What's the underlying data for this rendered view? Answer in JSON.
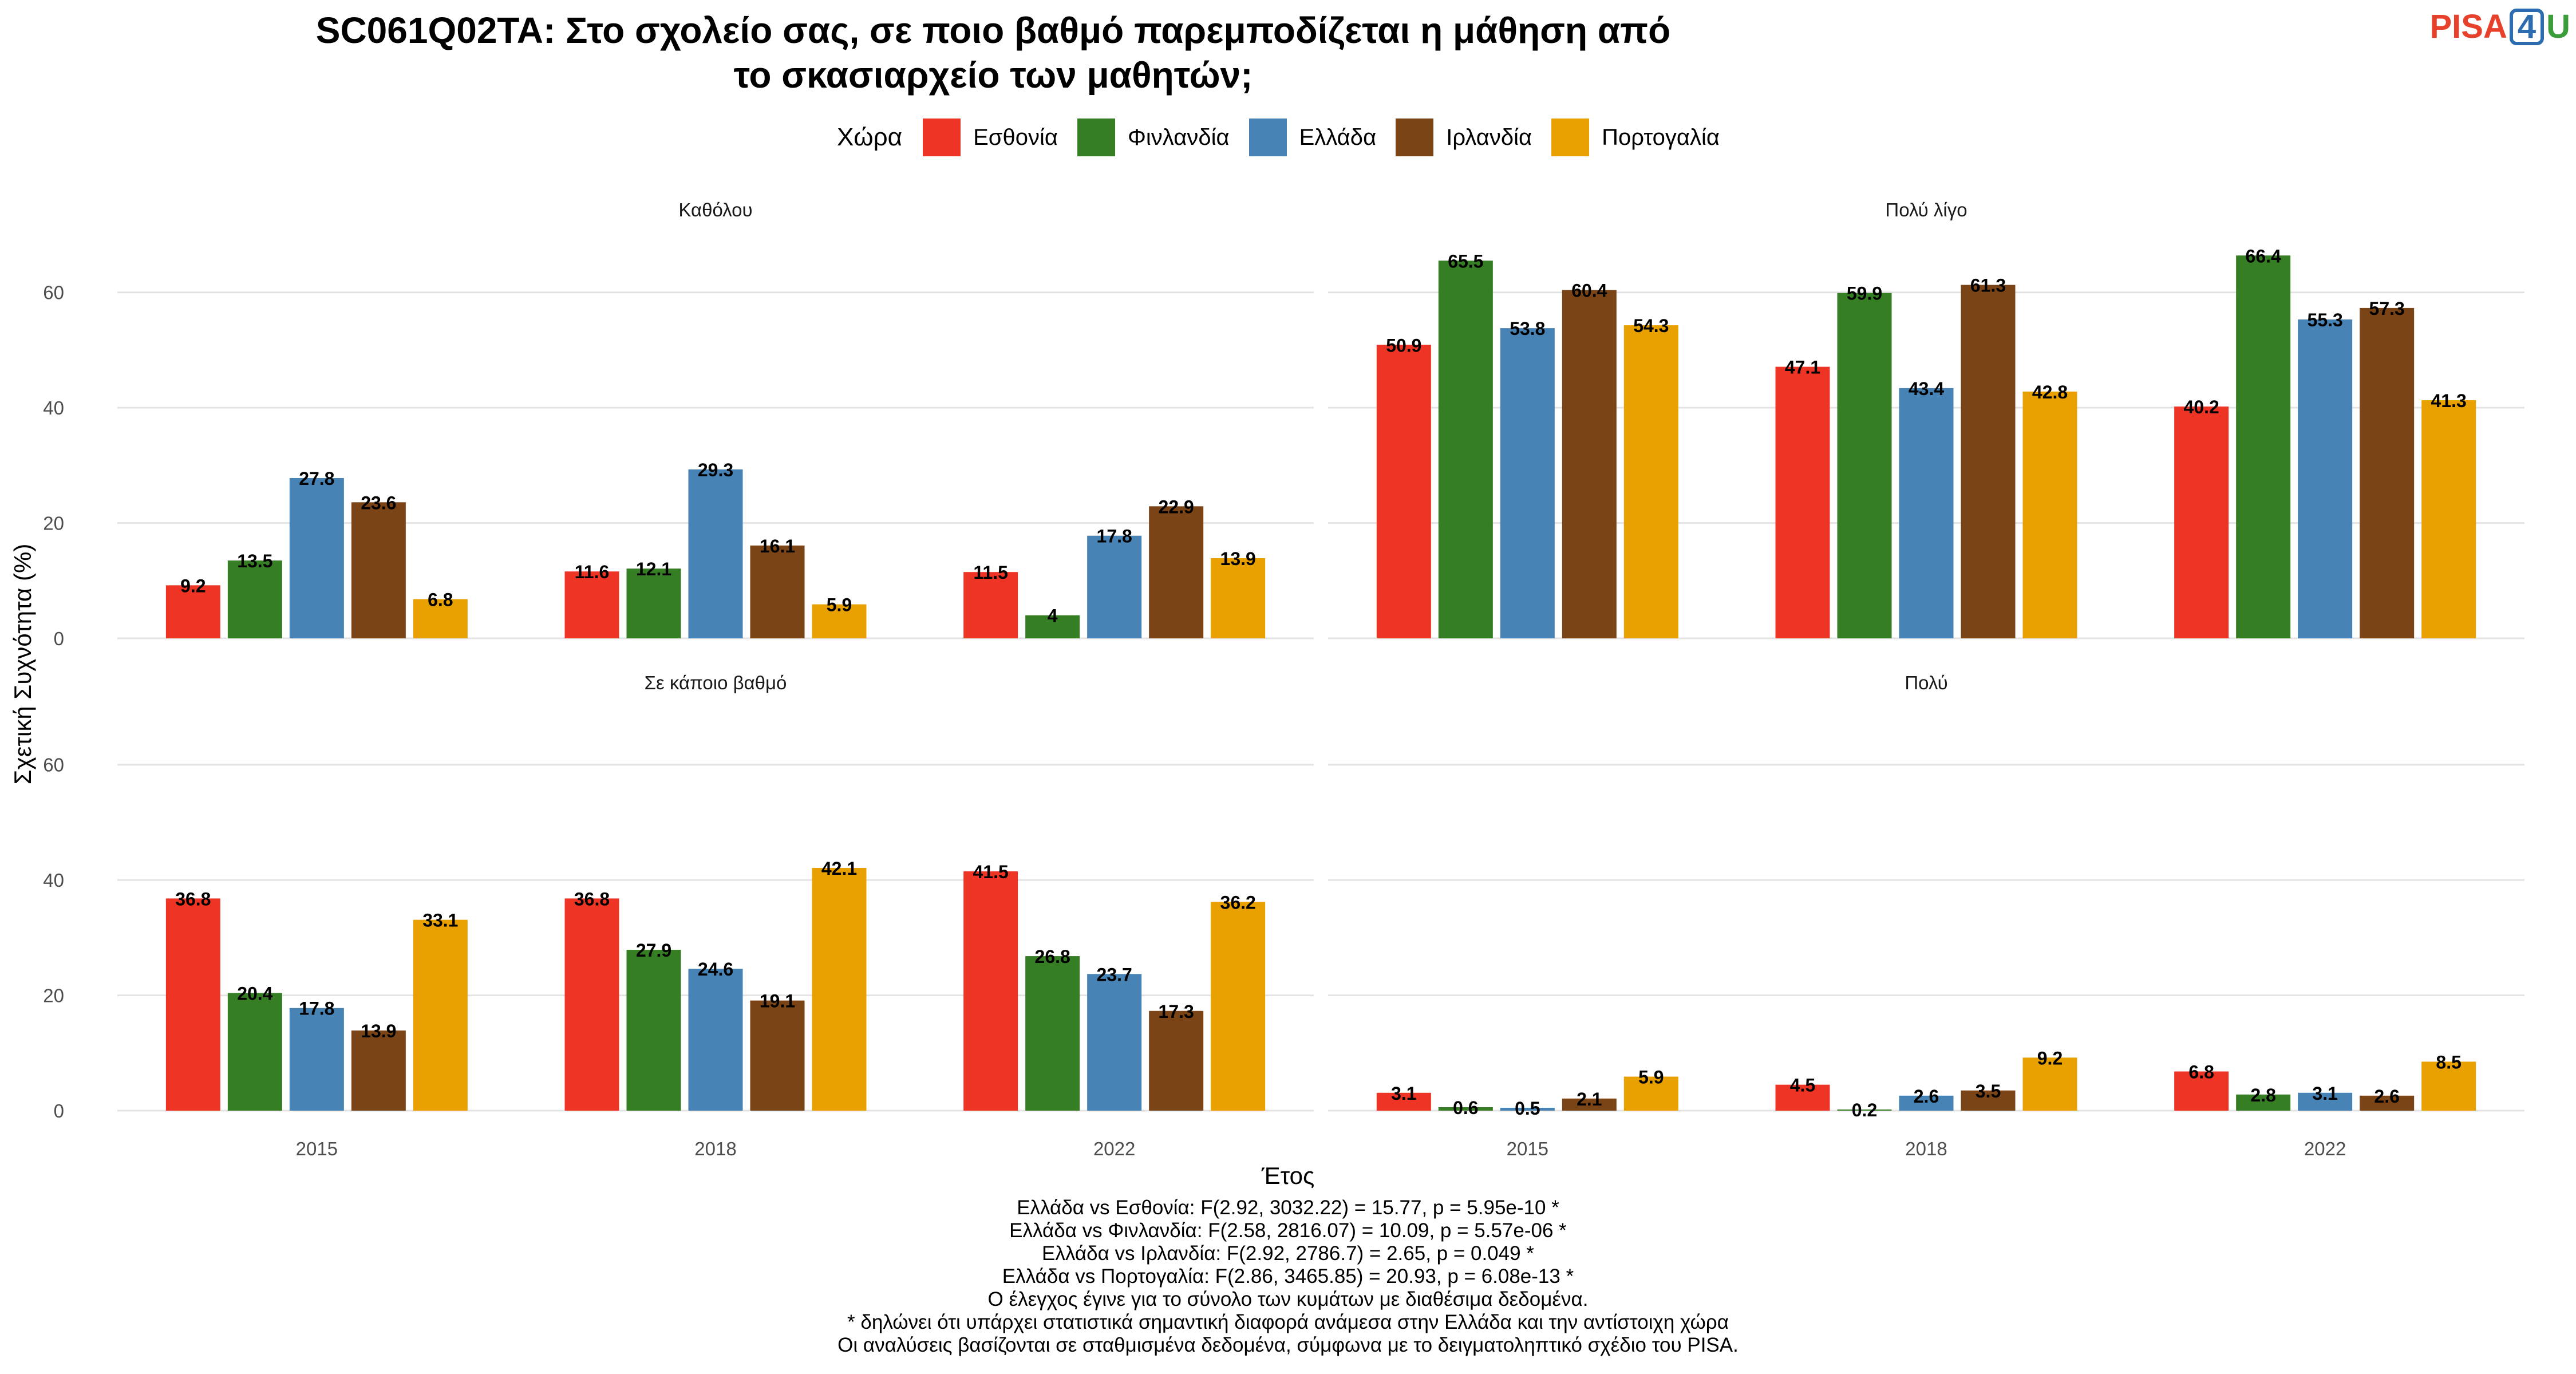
{
  "title_lines": [
    "SC061Q02TA: Στο σχολείο σας, σε ποιο βαθμό παρεμποδίζεται η μάθηση από",
    "το σκασιαρχείο των μαθητών;"
  ],
  "logo": {
    "part1": "PISA",
    "part2": "4",
    "part3": "U"
  },
  "legend": {
    "title": "Χώρα",
    "items": [
      {
        "label": "Εσθονία",
        "color": "#ee3424"
      },
      {
        "label": "Φινλανδία",
        "color": "#367e23"
      },
      {
        "label": "Ελλάδα",
        "color": "#4783b5"
      },
      {
        "label": "Ιρλανδία",
        "color": "#7a4416"
      },
      {
        "label": "Πορτογαλία",
        "color": "#e8a100"
      }
    ]
  },
  "chart_data": {
    "type": "bar",
    "xlabel": "Έτος",
    "ylabel": "Σχετική Συχνότητα (%)",
    "ylim": [
      0,
      70
    ],
    "yticks": [
      0,
      20,
      40,
      60
    ],
    "categories": [
      "2015",
      "2018",
      "2022"
    ],
    "legend_position": "top",
    "grid": true,
    "panels": [
      {
        "title": "Καθόλου",
        "series": [
          {
            "name": "Εσθονία",
            "values": [
              9.2,
              11.6,
              11.5
            ]
          },
          {
            "name": "Φινλανδία",
            "values": [
              13.5,
              12.1,
              4
            ]
          },
          {
            "name": "Ελλάδα",
            "values": [
              27.8,
              29.3,
              17.8
            ]
          },
          {
            "name": "Ιρλανδία",
            "values": [
              23.6,
              16.1,
              22.9
            ]
          },
          {
            "name": "Πορτογαλία",
            "values": [
              6.8,
              5.9,
              13.9
            ]
          }
        ]
      },
      {
        "title": "Πολύ λίγο",
        "series": [
          {
            "name": "Εσθονία",
            "values": [
              50.9,
              47.1,
              40.2
            ]
          },
          {
            "name": "Φινλανδία",
            "values": [
              65.5,
              59.9,
              66.4
            ]
          },
          {
            "name": "Ελλάδα",
            "values": [
              53.8,
              43.4,
              55.3
            ]
          },
          {
            "name": "Ιρλανδία",
            "values": [
              60.4,
              61.3,
              57.3
            ]
          },
          {
            "name": "Πορτογαλία",
            "values": [
              54.3,
              42.8,
              41.3
            ]
          }
        ]
      },
      {
        "title": "Σε κάποιο βαθμό",
        "series": [
          {
            "name": "Εσθονία",
            "values": [
              36.8,
              36.8,
              41.5
            ]
          },
          {
            "name": "Φινλανδία",
            "values": [
              20.4,
              27.9,
              26.8
            ]
          },
          {
            "name": "Ελλάδα",
            "values": [
              17.8,
              24.6,
              23.7
            ]
          },
          {
            "name": "Ιρλανδία",
            "values": [
              13.9,
              19.1,
              17.3
            ]
          },
          {
            "name": "Πορτογαλία",
            "values": [
              33.1,
              42.1,
              36.2
            ]
          }
        ]
      },
      {
        "title": "Πολύ",
        "series": [
          {
            "name": "Εσθονία",
            "values": [
              3.1,
              4.5,
              6.8
            ]
          },
          {
            "name": "Φινλανδία",
            "values": [
              0.6,
              0.2,
              2.8
            ]
          },
          {
            "name": "Ελλάδα",
            "values": [
              0.5,
              2.6,
              3.1
            ]
          },
          {
            "name": "Ιρλανδία",
            "values": [
              2.1,
              3.5,
              2.6
            ]
          },
          {
            "name": "Πορτογαλία",
            "values": [
              5.9,
              9.2,
              8.5
            ]
          }
        ]
      }
    ]
  },
  "notes": [
    "Ελλάδα vs Εσθονία: F(2.92, 3032.22) = 15.77, p = 5.95e-10 *",
    "Ελλάδα vs Φινλανδία: F(2.58, 2816.07) = 10.09, p = 5.57e-06 *",
    "Ελλάδα vs Ιρλανδία: F(2.92, 2786.7) = 2.65, p = 0.049 *",
    "Ελλάδα vs Πορτογαλία: F(2.86, 3465.85) = 20.93, p = 6.08e-13 *",
    "Ο έλεγχος έγινε για το σύνολο των κυμάτων με διαθέσιμα δεδομένα.",
    "* δηλώνει ότι υπάρχει στατιστικά σημαντική διαφορά ανάμεσα στην Ελλάδα και την αντίστοιχη χώρα",
    "Οι αναλύσεις βασίζονται σε σταθμισμένα δεδομένα, σύμφωνα με το δειγματοληπτικό σχέδιο του PISA."
  ]
}
